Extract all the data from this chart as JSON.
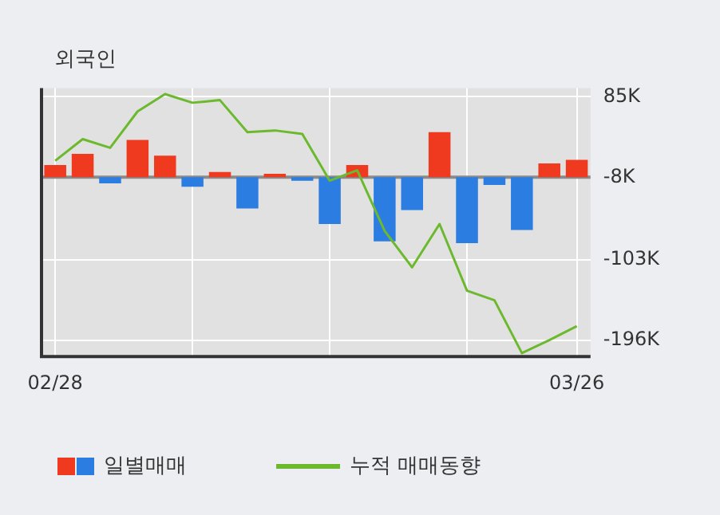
{
  "chart_data": {
    "type": "bar",
    "title": "외국인",
    "categories": [
      "02/28",
      null,
      null,
      null,
      null,
      null,
      null,
      null,
      null,
      null,
      null,
      null,
      null,
      null,
      null,
      null,
      null,
      null,
      null,
      "03/26"
    ],
    "series": [
      {
        "name": "일별매매",
        "base": [
          -8,
          -8,
          -8,
          -8,
          -8,
          -8,
          -8,
          -8,
          -8,
          -8,
          -8,
          -8,
          -8,
          -8,
          -8,
          -8,
          -8,
          -8,
          -8,
          -8
        ],
        "colors": [
          "#f03a1f",
          "#f03a1f",
          "#2c7de2",
          "#f03a1f",
          "#f03a1f",
          "#2c7de2",
          "#f03a1f",
          "#2c7de2",
          "#f03a1f",
          "#2c7de2",
          "#2c7de2",
          "#f03a1f",
          "#2c7de2",
          "#2c7de2",
          "#f03a1f",
          "#2c7de2",
          "#2c7de2",
          "#2c7de2",
          "#f03a1f",
          "#f03a1f"
        ],
        "values": [
          14,
          27,
          -7,
          43,
          25,
          -11,
          6,
          -36,
          4,
          -4,
          -54,
          14,
          -74,
          -38,
          52,
          -76,
          -9,
          -61,
          16,
          20
        ]
      },
      {
        "name": "누적 매매동향",
        "type": "line",
        "color": "#6cb92e",
        "values": [
          11,
          36,
          26,
          68,
          88,
          78,
          81,
          44,
          46,
          42,
          -12,
          0,
          -70,
          -112,
          -62,
          -139,
          -150,
          -211,
          -196,
          -180
        ]
      }
    ],
    "ylim": [
      -215,
      95
    ],
    "yticks": [
      {
        "value": 85,
        "label": "85K"
      },
      {
        "value": -8,
        "label": "-8K"
      },
      {
        "value": -103,
        "label": "-103K"
      },
      {
        "value": -196,
        "label": "-196K"
      }
    ],
    "ref_lines": [
      {
        "axis": "y",
        "value": -8,
        "color": "#8a8a8a"
      }
    ],
    "grid": true,
    "legend": "bottom",
    "marker": "none"
  }
}
